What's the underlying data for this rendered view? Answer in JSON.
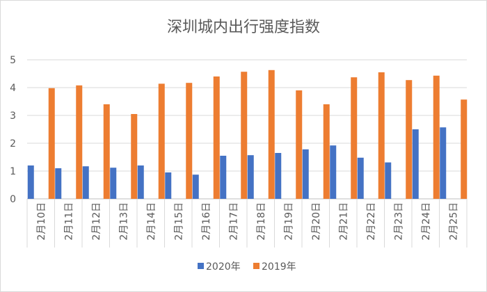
{
  "chart_data": {
    "type": "bar",
    "title": "深圳城内出行强度指数",
    "xlabel": "",
    "ylabel": "",
    "ylim": [
      0,
      5
    ],
    "yticks": [
      0,
      1,
      2,
      3,
      4,
      5
    ],
    "grid": true,
    "legend": "bottom",
    "categories": [
      "2月10日",
      "2月11日",
      "2月12日",
      "2月13日",
      "2月14日",
      "2月15日",
      "2月16日",
      "2月17日",
      "2月18日",
      "2月19日",
      "2月20日",
      "2月21日",
      "2月22日",
      "2月23日",
      "2月24日",
      "2月25日"
    ],
    "series": [
      {
        "name": "2020年",
        "color": "#4472c4",
        "values": [
          1.2,
          1.1,
          1.17,
          1.12,
          1.2,
          0.95,
          0.87,
          1.55,
          1.57,
          1.65,
          1.78,
          1.92,
          1.48,
          1.31,
          2.5,
          2.57
        ]
      },
      {
        "name": "2019年",
        "color": "#ed7d31",
        "values": [
          3.98,
          4.08,
          3.4,
          3.05,
          4.14,
          4.17,
          4.4,
          4.57,
          4.63,
          3.9,
          3.4,
          4.37,
          4.55,
          4.27,
          4.43,
          3.57
        ]
      }
    ]
  }
}
